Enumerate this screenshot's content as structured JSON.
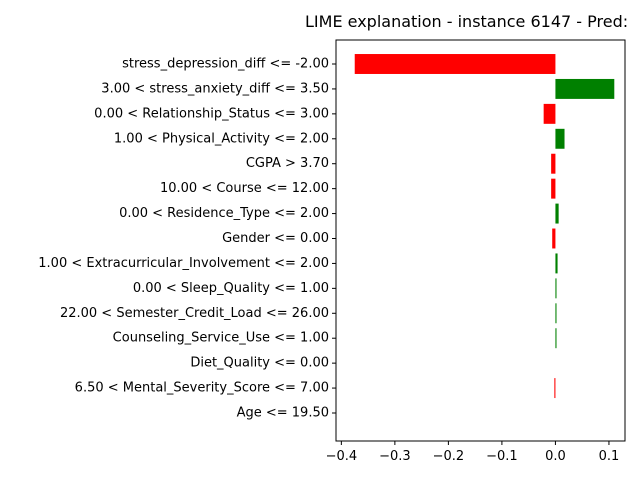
{
  "chart_data": {
    "type": "bar",
    "orientation": "horizontal",
    "title": "LIME explanation - instance 6147 - Pred:",
    "xlabel": "",
    "ylabel": "",
    "xlim": [
      -0.41,
      0.13
    ],
    "xticks": [
      -0.4,
      -0.3,
      -0.2,
      -0.1,
      0.0,
      0.1
    ],
    "xtick_labels": [
      "−0.4",
      "−0.3",
      "−0.2",
      "−0.1",
      "0.0",
      "0.1"
    ],
    "grid": false,
    "positive_color": "#008000",
    "negative_color": "#ff0000",
    "categories": [
      "stress_depression_diff <= -2.00",
      "3.00 < stress_anxiety_diff <= 3.50",
      "0.00 < Relationship_Status <= 3.00",
      "1.00 < Physical_Activity <= 2.00",
      "CGPA > 3.70",
      "10.00 < Course <= 12.00",
      "0.00 < Residence_Type <= 2.00",
      "Gender <= 0.00",
      "1.00 < Extracurricular_Involvement <= 2.00",
      "0.00 < Sleep_Quality <= 1.00",
      "22.00 < Semester_Credit_Load <= 26.00",
      "Counseling_Service_Use <= 1.00",
      "Diet_Quality <= 0.00",
      "6.50 < Mental_Severity_Score <= 7.00",
      "Age <= 19.50"
    ],
    "values": [
      -0.375,
      0.11,
      -0.022,
      0.017,
      -0.008,
      -0.008,
      0.006,
      -0.006,
      0.004,
      0.002,
      0.002,
      0.002,
      0.0,
      -0.002,
      0.0
    ]
  }
}
